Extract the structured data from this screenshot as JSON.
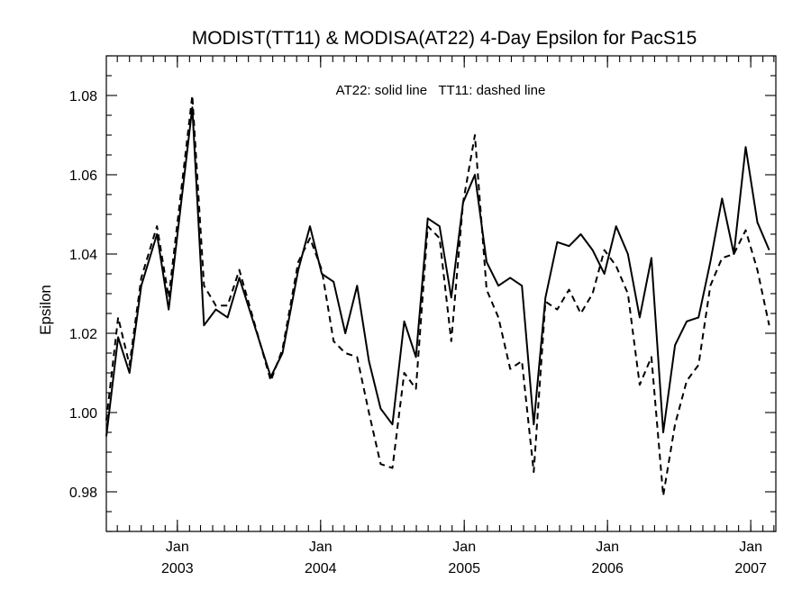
{
  "chart_data": {
    "type": "line",
    "title": "MODIST(TT11) & MODISA(AT22) 4-Day Epsilon for PacS15",
    "annotation": "AT22: solid line   TT11: dashed line",
    "ylabel": "Epsilon",
    "xlabel": "",
    "ylim": [
      0.97,
      1.09
    ],
    "xlim": [
      "2002-07-04",
      "2007-03-06"
    ],
    "y_ticks": [
      "0.98",
      "1.00",
      "1.02",
      "1.04",
      "1.06",
      "1.08"
    ],
    "x_ticks": [
      {
        "date": "2003-01-01",
        "month": "Jan",
        "year": "2003"
      },
      {
        "date": "2004-01-01",
        "month": "Jan",
        "year": "2004"
      },
      {
        "date": "2005-01-01",
        "month": "Jan",
        "year": "2005"
      },
      {
        "date": "2006-01-01",
        "month": "Jan",
        "year": "2006"
      },
      {
        "date": "2007-01-01",
        "month": "Jan",
        "year": "2007"
      }
    ],
    "grid": false,
    "series": [
      {
        "name": "AT22",
        "style": "solid",
        "color": "#000000",
        "points": [
          [
            "2002-07-04",
            0.994
          ],
          [
            "2002-08-03",
            1.019
          ],
          [
            "2002-09-01",
            1.01
          ],
          [
            "2002-10-01",
            1.032
          ],
          [
            "2002-11-10",
            1.045
          ],
          [
            "2002-12-10",
            1.026
          ],
          [
            "2003-02-08",
            1.077
          ],
          [
            "2003-03-10",
            1.022
          ],
          [
            "2003-04-09",
            1.026
          ],
          [
            "2003-05-09",
            1.024
          ],
          [
            "2003-06-08",
            1.034
          ],
          [
            "2003-08-27",
            1.009
          ],
          [
            "2003-09-26",
            1.015
          ],
          [
            "2003-11-05",
            1.036
          ],
          [
            "2003-12-05",
            1.047
          ],
          [
            "2004-01-04",
            1.035
          ],
          [
            "2004-02-03",
            1.033
          ],
          [
            "2004-03-04",
            1.02
          ],
          [
            "2004-04-03",
            1.032
          ],
          [
            "2004-05-03",
            1.013
          ],
          [
            "2004-06-02",
            1.001
          ],
          [
            "2004-07-02",
            0.997
          ],
          [
            "2004-08-01",
            1.023
          ],
          [
            "2004-08-31",
            1.014
          ],
          [
            "2004-09-30",
            1.049
          ],
          [
            "2004-10-30",
            1.047
          ],
          [
            "2004-11-29",
            1.029
          ],
          [
            "2004-12-29",
            1.053
          ],
          [
            "2005-01-28",
            1.06
          ],
          [
            "2005-02-27",
            1.038
          ],
          [
            "2005-03-29",
            1.032
          ],
          [
            "2005-04-28",
            1.034
          ],
          [
            "2005-05-28",
            1.032
          ],
          [
            "2005-06-27",
            0.997
          ],
          [
            "2005-07-27",
            1.029
          ],
          [
            "2005-08-26",
            1.043
          ],
          [
            "2005-09-25",
            1.042
          ],
          [
            "2005-10-25",
            1.045
          ],
          [
            "2005-11-24",
            1.041
          ],
          [
            "2005-12-24",
            1.035
          ],
          [
            "2006-01-23",
            1.047
          ],
          [
            "2006-02-22",
            1.04
          ],
          [
            "2006-03-24",
            1.024
          ],
          [
            "2006-04-23",
            1.039
          ],
          [
            "2006-05-23",
            0.995
          ],
          [
            "2006-06-22",
            1.017
          ],
          [
            "2006-07-22",
            1.023
          ],
          [
            "2006-08-21",
            1.024
          ],
          [
            "2006-09-20",
            1.038
          ],
          [
            "2006-10-20",
            1.054
          ],
          [
            "2006-11-19",
            1.04
          ],
          [
            "2006-12-19",
            1.067
          ],
          [
            "2007-01-18",
            1.048
          ],
          [
            "2007-02-17",
            1.041
          ]
        ]
      },
      {
        "name": "TT11",
        "style": "dashed",
        "color": "#000000",
        "points": [
          [
            "2002-07-04",
            0.998
          ],
          [
            "2002-08-03",
            1.024
          ],
          [
            "2002-09-01",
            1.012
          ],
          [
            "2002-10-01",
            1.034
          ],
          [
            "2002-11-10",
            1.047
          ],
          [
            "2002-12-10",
            1.029
          ],
          [
            "2003-02-08",
            1.08
          ],
          [
            "2003-03-10",
            1.032
          ],
          [
            "2003-04-09",
            1.027
          ],
          [
            "2003-05-09",
            1.027
          ],
          [
            "2003-06-08",
            1.036
          ],
          [
            "2003-08-27",
            1.008
          ],
          [
            "2003-09-26",
            1.016
          ],
          [
            "2003-11-05",
            1.038
          ],
          [
            "2003-12-05",
            1.044
          ],
          [
            "2004-01-04",
            1.036
          ],
          [
            "2004-02-03",
            1.018
          ],
          [
            "2004-03-04",
            1.015
          ],
          [
            "2004-04-03",
            1.014
          ],
          [
            "2004-05-03",
            1.0
          ],
          [
            "2004-06-02",
            0.987
          ],
          [
            "2004-07-02",
            0.986
          ],
          [
            "2004-08-01",
            1.01
          ],
          [
            "2004-08-31",
            1.006
          ],
          [
            "2004-09-30",
            1.047
          ],
          [
            "2004-10-30",
            1.044
          ],
          [
            "2004-11-29",
            1.018
          ],
          [
            "2004-12-29",
            1.053
          ],
          [
            "2005-01-28",
            1.07
          ],
          [
            "2005-02-27",
            1.031
          ],
          [
            "2005-03-29",
            1.024
          ],
          [
            "2005-04-28",
            1.011
          ],
          [
            "2005-05-28",
            1.013
          ],
          [
            "2005-06-27",
            0.985
          ],
          [
            "2005-07-27",
            1.028
          ],
          [
            "2005-08-26",
            1.026
          ],
          [
            "2005-09-25",
            1.031
          ],
          [
            "2005-10-25",
            1.025
          ],
          [
            "2005-11-24",
            1.03
          ],
          [
            "2005-12-24",
            1.041
          ],
          [
            "2006-01-23",
            1.037
          ],
          [
            "2006-02-22",
            1.03
          ],
          [
            "2006-03-24",
            1.007
          ],
          [
            "2006-04-23",
            1.014
          ],
          [
            "2006-05-23",
            0.979
          ],
          [
            "2006-06-22",
            0.997
          ],
          [
            "2006-07-22",
            1.008
          ],
          [
            "2006-08-21",
            1.012
          ],
          [
            "2006-09-20",
            1.032
          ],
          [
            "2006-10-20",
            1.039
          ],
          [
            "2006-11-19",
            1.04
          ],
          [
            "2006-12-19",
            1.046
          ],
          [
            "2007-01-18",
            1.036
          ],
          [
            "2007-02-17",
            1.022
          ]
        ]
      }
    ]
  }
}
